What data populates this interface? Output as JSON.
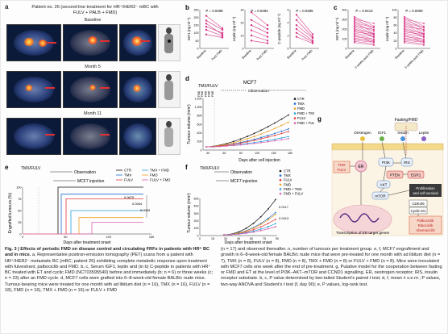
{
  "panel_a": {
    "letter": "a",
    "title_line1": "Patient no. 26 (second-line treatment for HR⁺/HER2⁻ mBC with",
    "title_line2": "FULV + PALB + FMD)",
    "timepoints": [
      "Baseline",
      "Month 5",
      "Month 11"
    ]
  },
  "panel_b": {
    "letter": "b",
    "subplots": [
      {
        "ylabel": "IGF1 (ng ml⁻¹)",
        "p": "P = 0.0498",
        "xticks": [
          "Baseline",
          "Post FMD"
        ],
        "ylim": [
          0,
          250
        ],
        "yticks": [
          "0",
          "50",
          "100",
          "150",
          "200",
          "250"
        ]
      },
      {
        "ylabel": "Leptin (ng ml⁻¹)",
        "p": "P = 0.0494",
        "xticks": [
          "Baseline",
          "Post FMD"
        ],
        "ylim": [
          0,
          30
        ],
        "yticks": [
          "0",
          "10",
          "20",
          "30"
        ]
      },
      {
        "ylabel": "C-peptide (ng ml⁻¹)",
        "p": "P = 0.0285",
        "xticks": [
          "Baseline",
          "Post FMD"
        ],
        "ylim": [
          0,
          6
        ],
        "yticks": [
          "0",
          "2",
          "4",
          "6"
        ]
      }
    ]
  },
  "panel_c": {
    "letter": "c",
    "subplots": [
      {
        "ylabel": "IGF1 (ng ml⁻¹)",
        "p": "P = 0.0413",
        "xticks": [
          "Baseline",
          "3 weeks post FMD"
        ],
        "yticks": [
          "0",
          "100",
          "200",
          "300",
          "400"
        ]
      },
      {
        "ylabel": "Leptin (ng ml⁻¹)",
        "p": "P = 0.0009",
        "xticks": [
          "Baseline",
          "3 weeks post FMD"
        ],
        "yticks": [
          "0",
          "20",
          "40",
          "60",
          "80",
          "100"
        ]
      }
    ]
  },
  "panel_d": {
    "letter": "d",
    "title": "MCF7",
    "top_label": "TMX/FULV",
    "observation": "Observation",
    "fmd_label": "FMD",
    "ylabel": "Tumour volume (mm³)",
    "xlabel": "Days after cell injection",
    "xticks": [
      "30",
      "60",
      "90",
      "120",
      "150",
      "180"
    ],
    "yticks": [
      "0",
      "200",
      "400",
      "600",
      "800",
      "1,000",
      "1,200"
    ],
    "legend": [
      "CTR",
      "TMX",
      "FMD",
      "FMD + TMX",
      "FULV",
      "FMD + FULV"
    ]
  },
  "panel_e": {
    "letter": "e",
    "top_label": "TMX/FULV",
    "observation": "Observation",
    "injection": "MCF7 injection",
    "ylabel": "Engrafted tumours (%)",
    "xlabel": "Days after treatment onset",
    "xticks": [
      "0",
      "50",
      "100",
      "150"
    ],
    "yticks": [
      "0",
      "25",
      "50",
      "75",
      "100"
    ],
    "legend_left": [
      "CTR",
      "TMX",
      "FULV"
    ],
    "legend_right": [
      "TMX + FMD",
      "FMD",
      "FULV + FMD"
    ],
    "pvalues": [
      "0.0675",
      "0.0264",
      "0.0089"
    ]
  },
  "panel_f": {
    "letter": "f",
    "top_label": "TMX/FULV",
    "observation": "Observation",
    "injection": "MCF7 injection",
    "ylabel": "Tumour volume (mm³)",
    "xlabel": "Days after treatment onset",
    "xticks": [
      "0",
      "15",
      "30",
      "45",
      "60",
      "75",
      "90"
    ],
    "yticks": [
      "0",
      "100",
      "200",
      "300",
      "400",
      "500"
    ],
    "legend": [
      "CTR",
      "TMX",
      "FULV",
      "FMD",
      "FMD + TMX",
      "FMD + FULV"
    ],
    "pvalues": [
      "0.0117",
      "0.0413"
    ]
  },
  "panel_g": {
    "letter": "g",
    "nodes": {
      "fasting": "Fasting/FMD",
      "oestrogen": "Oestrogen",
      "igf1": "IGF1",
      "insulin": "Insulin",
      "leptin": "Leptin",
      "tmx_fulv": "TMX\nFULV",
      "er": "ER",
      "pi3k": "PI3K",
      "irs": "IRS",
      "pten": "PTEN",
      "egr1": "EGR1",
      "akt": "AKT",
      "mtor": "mTOR",
      "prolif": "Proliferation and cell survival",
      "cdk": "CDK4/6",
      "cyclin": "Cyclin D1",
      "palbo": "Palbociclib\nRibociclib\nAbemaciclib",
      "transcription": "Transcription of ER target genes"
    }
  },
  "caption_left": {
    "heading": "Fig. 3 | Effects of periodic FMD on disease control and circulating FRFs in patients with HR⁺ BC and in mice.",
    "body": " a, Representative positron-emission tomography (PET) scans from a patient with HR⁺/HER2⁻ metastatic BC (mBC; patient 26) exhibiting complete metabolic response upon treatment with fulvestrant, palbociclib and FMD. b, c, Serum IGF1, leptin and (in b) C-peptide in patients with HR⁺ BC treated with ET and cyclic FMD (NCT03595540) before and immediately (b; n = 6) or three weeks (c; n = 23) after an FMD cycle. d, MCF7 cells were grafted into 6–8-week-old female BALB/c nude mice. Tumour-bearing mice were treated for one month with ad libitum diet (n = 16), TMX (n = 16), FULV (n = 18), FMD (n = 16), TMX + FMD (n = 16) or FULV + FMD"
  },
  "caption_right": {
    "body": "(n = 17) and observed thereafter. n, number of tumours per treatment group. e, f, MCF7 engraftment and growth in 6–8-week-old female BALB/c nude mice that were pre-treated for one month with ad libitum diet (n = 7), TMX (n = 8), FULV (n = 8), FMD (n = 8), TMX + FMD (n = 8) or FULV + FMD (n = 8). Mice were inoculated with MCF7 cells one week after the end of pre-treatment. g, Putative model for the cooperation between fasting or FMD and ET at the level of PI3K–AKT–mTOR and CCND1 signalling. ER, oestrogen receptor; IRS, insulin receptor substrate. b, c, P value determined by two-tailed Student’s paired t test; d, f, mean ± s.e.m.; P values, two-way ANOVA and Student’s t test (f, day 90); e, P values, log-rank test."
  },
  "colors": {
    "ctr": "#111111",
    "tmx": "#1f6fd0",
    "fulv": "#e83a3a",
    "fmd": "#f0a020",
    "fmd_tmx": "#28a0e0",
    "fmd_fulv": "#e060b0",
    "pink": "#d63384"
  }
}
